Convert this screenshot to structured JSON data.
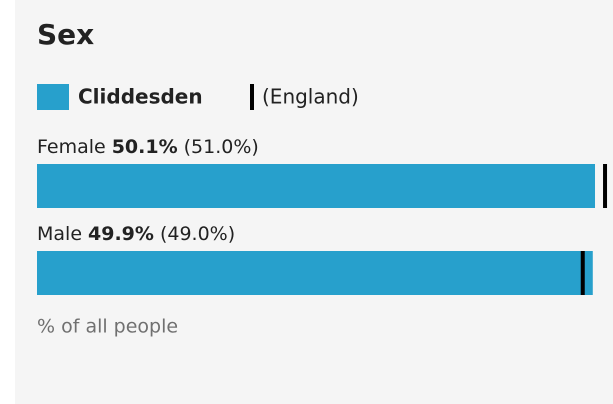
{
  "chart_data": {
    "type": "bar",
    "orientation": "horizontal",
    "title": "Sex",
    "categories": [
      "Female",
      "Male"
    ],
    "series": [
      {
        "name": "Cliddesden",
        "color": "#27a0cc",
        "values": [
          50.1,
          49.9
        ],
        "value_labels": [
          "50.1%",
          "49.9%"
        ]
      },
      {
        "name": "(England)",
        "color": "#000000",
        "values": [
          51.0,
          49.0
        ],
        "value_labels": [
          "(51.0%)",
          "(49.0%)"
        ]
      }
    ],
    "xlim": [
      0,
      51.5
    ],
    "x_label": "% of all people"
  }
}
